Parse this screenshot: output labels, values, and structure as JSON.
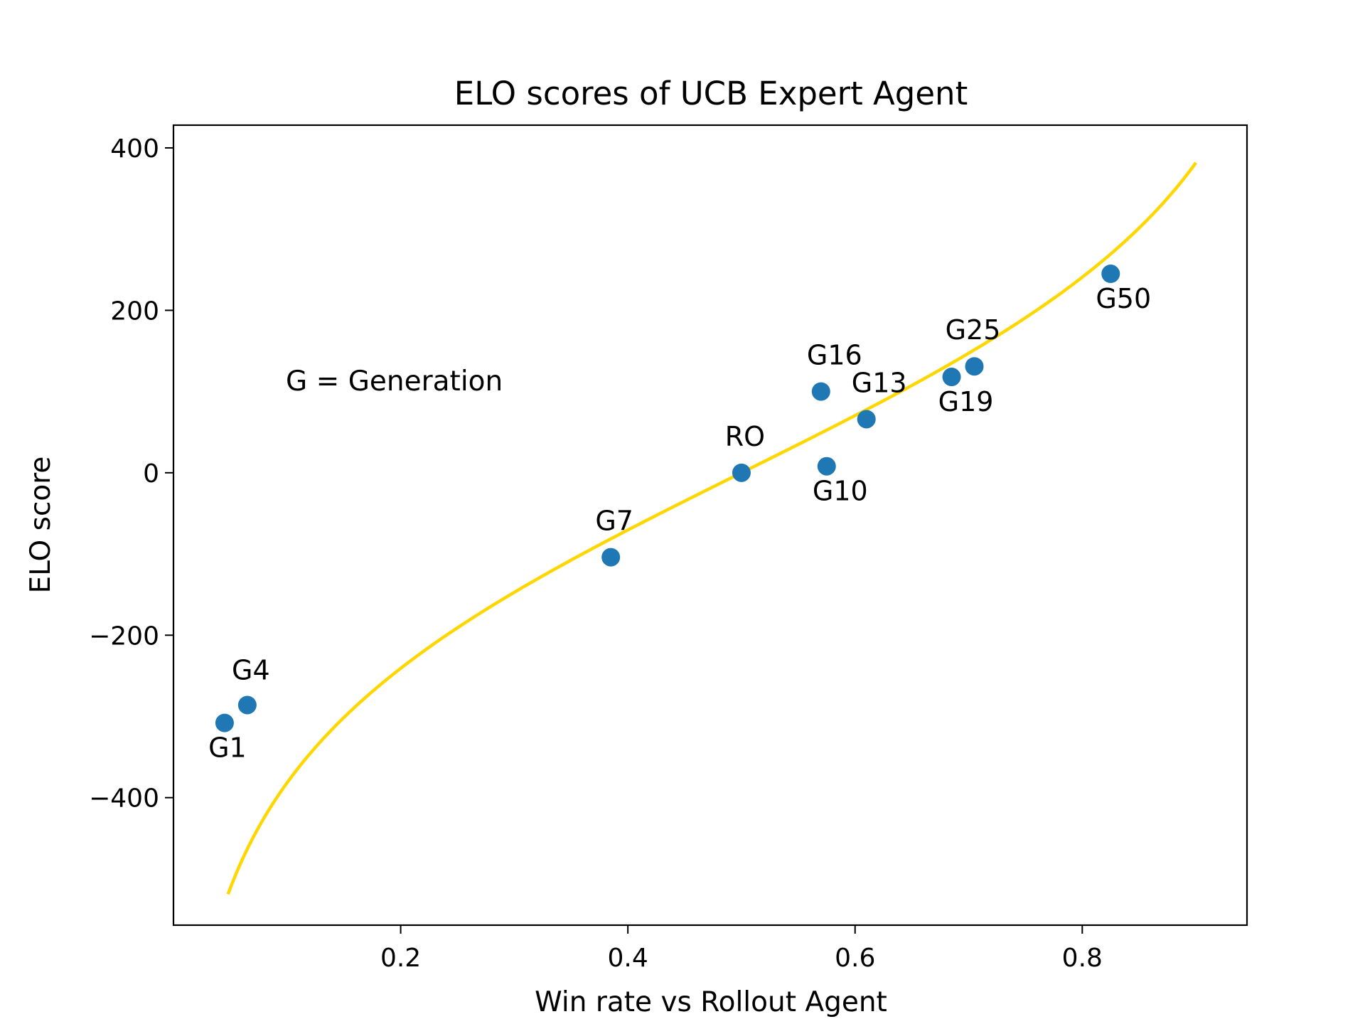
{
  "chart_data": {
    "type": "scatter",
    "title": "ELO scores of UCB Expert Agent",
    "xlabel": "Win rate vs Rollout Agent",
    "ylabel": "ELO score",
    "xlim": [
      0.0,
      0.945
    ],
    "ylim": [
      -557,
      428
    ],
    "x_ticks": [
      0.2,
      0.4,
      0.6,
      0.8
    ],
    "x_tick_labels": [
      "0.2",
      "0.4",
      "0.6",
      "0.8"
    ],
    "y_ticks": [
      400,
      200,
      0,
      -200,
      -400
    ],
    "y_tick_labels": [
      "400",
      "200",
      "0",
      "−200",
      "−400"
    ],
    "grid": false,
    "annotation": "G = Generation",
    "point_color": "#1f77b4",
    "curve_color": "#ffd700",
    "curve": {
      "x_range": [
        0.048,
        0.9
      ]
    },
    "points": [
      {
        "label": "G1",
        "x": 0.045,
        "y": -308
      },
      {
        "label": "G4",
        "x": 0.065,
        "y": -286
      },
      {
        "label": "G7",
        "x": 0.385,
        "y": -104
      },
      {
        "label": "RO",
        "x": 0.5,
        "y": 0
      },
      {
        "label": "G10",
        "x": 0.575,
        "y": 8
      },
      {
        "label": "G16",
        "x": 0.57,
        "y": 100
      },
      {
        "label": "G13",
        "x": 0.61,
        "y": 66
      },
      {
        "label": "G19",
        "x": 0.685,
        "y": 118
      },
      {
        "label": "G25",
        "x": 0.705,
        "y": 131
      },
      {
        "label": "G50",
        "x": 0.825,
        "y": 245
      }
    ]
  }
}
